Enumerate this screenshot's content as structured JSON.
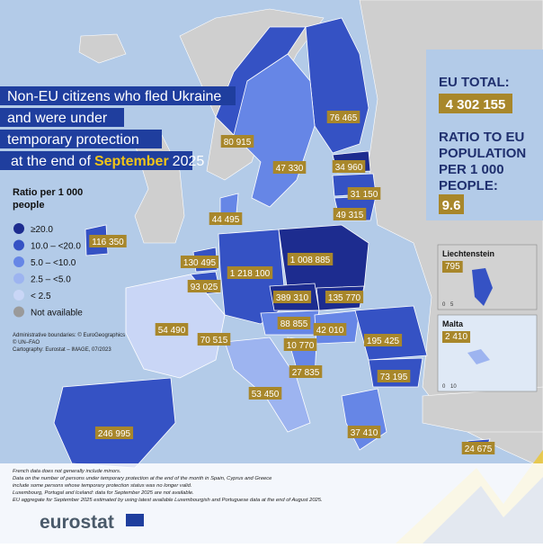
{
  "title": {
    "lines": [
      "Non-EU citizens who fled Ukraine",
      "and were under",
      "temporary protection"
    ],
    "last_prefix": "at the end of",
    "last_highlight": "September",
    "last_suffix": "2025"
  },
  "legend": {
    "title_lines": [
      "Ratio per 1 000",
      "people"
    ],
    "items": [
      {
        "label": "≥20.0",
        "color": "#1d2c8f"
      },
      {
        "label": "10.0 – <20.0",
        "color": "#3552c4"
      },
      {
        "label": "5.0 – <10.0",
        "color": "#6686e6"
      },
      {
        "label": "2.5 – <5.0",
        "color": "#9db4f0"
      },
      {
        "label": "< 2.5",
        "color": "#c9d6f6"
      },
      {
        "label": "Not available",
        "color": "#9a9a9a"
      }
    ]
  },
  "map_labels": [
    "76 465",
    "80 915",
    "47 330",
    "34 960",
    "31 150",
    "49 315",
    "44 495",
    "116 350",
    "130 495",
    "1 218 100",
    "1 008 885",
    "93 025",
    "389 310",
    "135 770",
    "54 490",
    "70 515",
    "88 855",
    "42 010",
    "195 425",
    "10 770",
    "27 835",
    "73 195",
    "53 450",
    "246 995",
    "37 410",
    "24 675"
  ],
  "eu_total": {
    "label": "EU TOTAL:",
    "value": "4 302 155"
  },
  "ratio": {
    "lines": [
      "RATIO TO EU",
      "POPULATION",
      "PER 1 000",
      "PEOPLE:"
    ],
    "value": "9.6"
  },
  "insets": [
    {
      "name": "Liechtenstein",
      "value": "795",
      "scale": [
        "0",
        "5"
      ]
    },
    {
      "name": "Malta",
      "value": "2 410",
      "scale": [
        "0",
        "10"
      ]
    }
  ],
  "sources": [
    "Administrative boundaries: © EuroGeographics",
    "© UN–FAO",
    "Cartography: Eurostat – IMAGE, 07/2023"
  ],
  "notes": [
    "French data does not generally include minors.",
    "Data on the number of persons under temporary protection at the end of the month in Spain, Cyprus and Greece",
    "include some persons whose temporary protection status was no longer valid.",
    "Luxembourg, Portugal and Iceland: data for September 2025 are not available.",
    "EU aggregate for September 2025 estimated by using latest available Luxembourgish and Portuguese data at the end of August 2025."
  ],
  "logo": "eurostat"
}
